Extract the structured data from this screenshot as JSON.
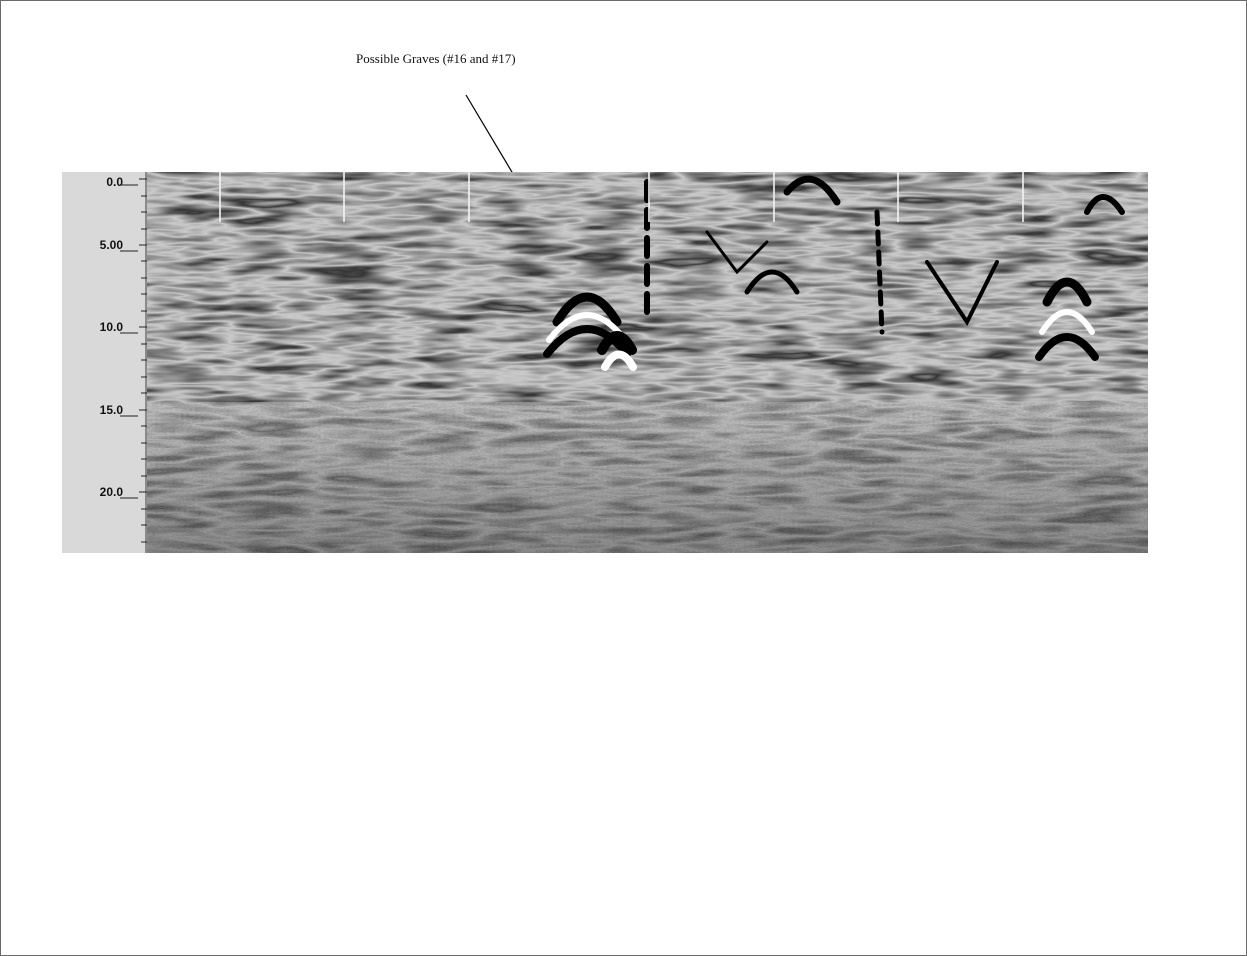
{
  "annotation": {
    "text": "Possible Graves (#16 and #17)"
  },
  "depth_axis": {
    "labels": [
      "0.0",
      "5.00",
      "10.0",
      "15.0",
      "20.0"
    ]
  },
  "colors": {
    "ruler_background": "#d9d9d9",
    "arrow": "#000000",
    "frame_border": "#6a6a6a"
  }
}
